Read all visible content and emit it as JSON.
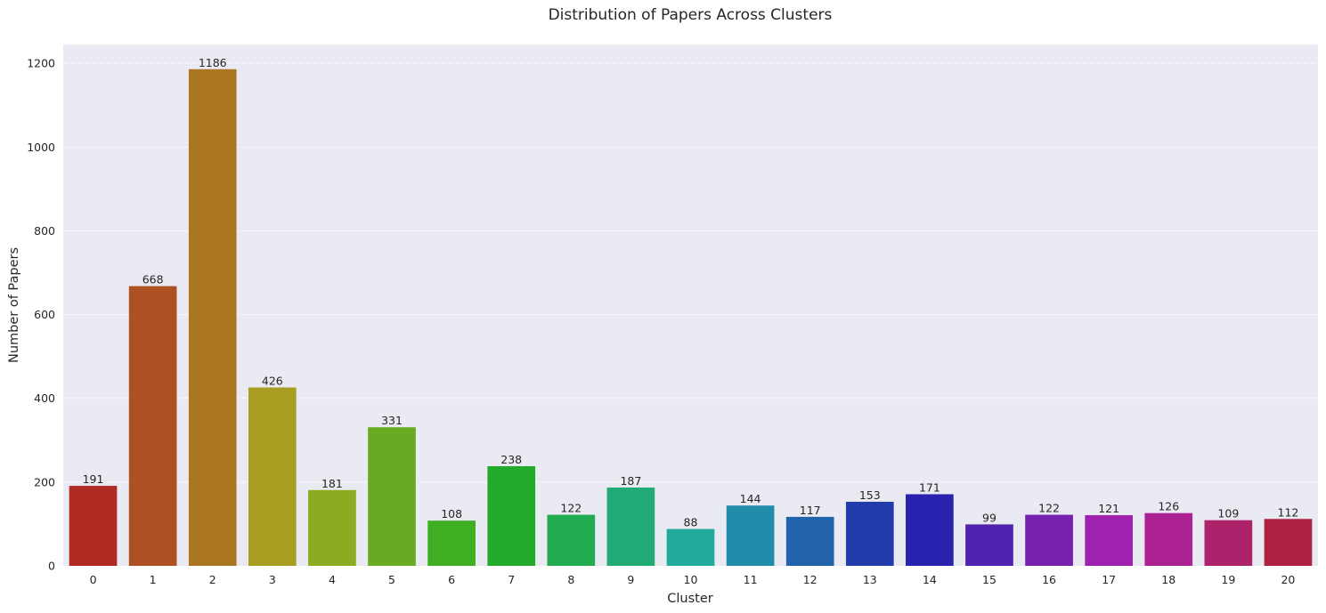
{
  "chart_data": {
    "type": "bar",
    "title": "Distribution of Papers Across Clusters",
    "xlabel": "Cluster",
    "ylabel": "Number of Papers",
    "categories": [
      "0",
      "1",
      "2",
      "3",
      "4",
      "5",
      "6",
      "7",
      "8",
      "9",
      "10",
      "11",
      "12",
      "13",
      "14",
      "15",
      "16",
      "17",
      "18",
      "19",
      "20"
    ],
    "values": [
      191,
      668,
      1186,
      426,
      181,
      331,
      108,
      238,
      122,
      187,
      88,
      144,
      117,
      153,
      171,
      99,
      122,
      121,
      126,
      109,
      112
    ],
    "colors": [
      "#af2a22",
      "#ad5022",
      "#aa7622",
      "#a89f22",
      "#8bab22",
      "#67ab22",
      "#3fae22",
      "#22aa2b",
      "#22ab4f",
      "#22ab77",
      "#22aa9d",
      "#228cab",
      "#2264ab",
      "#223dab",
      "#2922ae",
      "#5022ae",
      "#7722af",
      "#9e22af",
      "#ad2292",
      "#ac226b",
      "#ad2242"
    ],
    "yticks": [
      0,
      200,
      400,
      600,
      800,
      1000,
      1200
    ],
    "ylim": [
      0,
      1245
    ],
    "grid": true,
    "background": "#eaeaf2"
  }
}
